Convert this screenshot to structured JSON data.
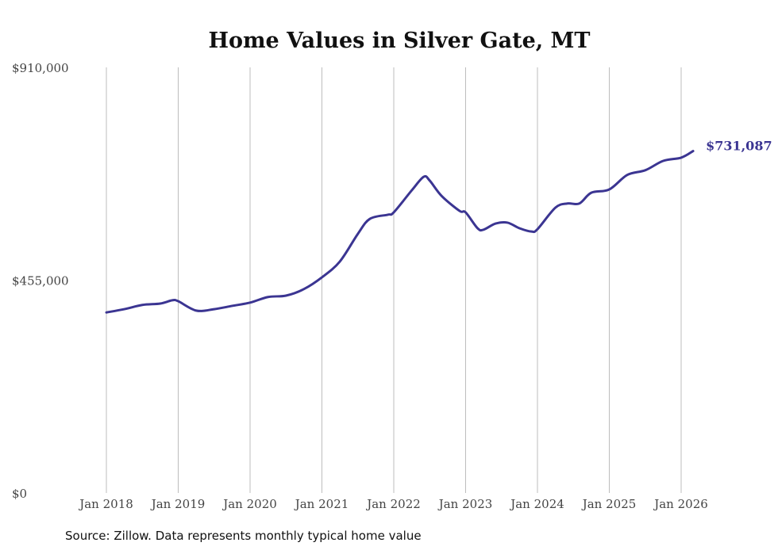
{
  "chart_data": {
    "type": "line",
    "title": "Home Values in Silver Gate, MT",
    "xlabel": "",
    "ylabel": "",
    "ylim": [
      0,
      910000
    ],
    "y_ticks": [
      "$0",
      "$455,000",
      "$910,000"
    ],
    "y_tick_values": [
      0,
      455000,
      910000
    ],
    "x_ticks": [
      "Jan 2018",
      "Jan 2019",
      "Jan 2020",
      "Jan 2021",
      "Jan 2022",
      "Jan 2023",
      "Jan 2024",
      "Jan 2025",
      "Jan 2026"
    ],
    "x_tick_values": [
      "2018-01",
      "2019-01",
      "2020-01",
      "2021-01",
      "2022-01",
      "2023-01",
      "2024-01",
      "2025-01",
      "2026-01"
    ],
    "grid": "vertical",
    "line_color": "#3b3592",
    "series": [
      {
        "name": "Typical home value",
        "x": [
          "2018-01",
          "2018-04",
          "2018-07",
          "2018-10",
          "2018-12",
          "2019-01",
          "2019-04",
          "2019-07",
          "2019-10",
          "2020-01",
          "2020-04",
          "2020-07",
          "2020-10",
          "2021-01",
          "2021-04",
          "2021-07",
          "2021-09",
          "2021-12",
          "2022-01",
          "2022-04",
          "2022-06",
          "2022-07",
          "2022-09",
          "2022-12",
          "2023-01",
          "2023-03",
          "2023-04",
          "2023-06",
          "2023-08",
          "2023-10",
          "2023-12",
          "2024-01",
          "2024-04",
          "2024-06",
          "2024-08",
          "2024-10",
          "2025-01",
          "2025-04",
          "2025-07",
          "2025-10",
          "2026-01",
          "2026-03"
        ],
        "values": [
          386000,
          393000,
          402000,
          405000,
          412000,
          410000,
          390000,
          393000,
          400000,
          407000,
          419000,
          422000,
          436000,
          461000,
          495000,
          554000,
          586000,
          595000,
          600000,
          647000,
          676000,
          668000,
          635000,
          603000,
          600000,
          566000,
          563000,
          576000,
          578000,
          566000,
          559000,
          564000,
          610000,
          619000,
          619000,
          642000,
          649000,
          680000,
          690000,
          710000,
          717000,
          731087
        ]
      }
    ],
    "end_label": "$731,087"
  },
  "source": "Source: Zillow. Data represents monthly typical home value"
}
